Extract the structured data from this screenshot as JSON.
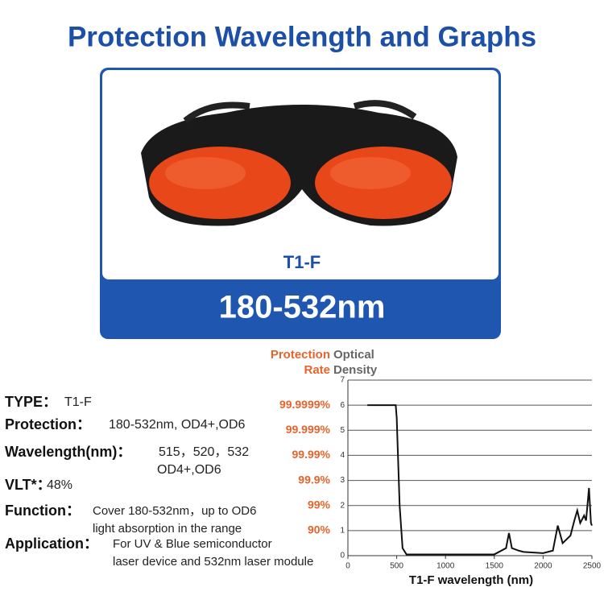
{
  "header": {
    "title": "Protection Wavelength and Graphs"
  },
  "product": {
    "model": "T1-F",
    "range": "180-532nm"
  },
  "specs": [
    {
      "label": "TYPE：",
      "lines": [
        "T1-F"
      ]
    },
    {
      "label": "Protection：",
      "lines": [
        "180-532nm, OD4+,OD6"
      ]
    },
    {
      "label": "Wavelength(nm)：",
      "lines": [
        "515，520，532",
        "OD4+,OD6"
      ]
    },
    {
      "label": "VLT*：",
      "lines": [
        "48%"
      ]
    },
    {
      "label": "Function：",
      "lines": [
        "Cover 180-532nm，up to OD6",
        "light absorption in the range"
      ]
    },
    {
      "label": "Application：",
      "lines": [
        "For UV & Blue semiconductor",
        "laser device and 532nm laser module"
      ]
    }
  ],
  "chart_data": {
    "type": "line",
    "x_label": "T1-F wavelength (nm)",
    "y_label": [
      "Optical",
      "Density"
    ],
    "y2_label": [
      "Protection",
      "Rate"
    ],
    "x": [
      200,
      490,
      500,
      530,
      560,
      600,
      800,
      1000,
      1500,
      1620,
      1650,
      1680,
      1750,
      1800,
      2000,
      2100,
      2150,
      2200,
      2280,
      2320,
      2350,
      2380,
      2420,
      2440,
      2470,
      2490,
      2500
    ],
    "values": [
      6,
      6,
      5.5,
      2,
      0.3,
      0.05,
      0.05,
      0.05,
      0.05,
      0.3,
      0.9,
      0.3,
      0.2,
      0.15,
      0.1,
      0.2,
      1.2,
      0.5,
      0.8,
      1.4,
      1.8,
      1.3,
      1.6,
      1.4,
      2.7,
      1.3,
      1.2
    ],
    "color": "#111111",
    "xlim": [
      0,
      2500
    ],
    "xticks": [
      0,
      500,
      1000,
      1500,
      2000,
      2500
    ],
    "ylim": [
      0,
      7
    ],
    "yticks": [
      0,
      1,
      2,
      3,
      4,
      5,
      6,
      7
    ],
    "y2lim": [
      0,
      7
    ],
    "y2ticks": [
      {
        "value": 1,
        "label": "90%"
      },
      {
        "value": 2,
        "label": "99%"
      },
      {
        "value": 3,
        "label": "99.9%"
      },
      {
        "value": 4,
        "label": "99.99%"
      },
      {
        "value": 5,
        "label": "99.999%"
      },
      {
        "value": 6,
        "label": "99.9999%"
      }
    ],
    "y2_color": "#e8632b",
    "grid": true
  }
}
